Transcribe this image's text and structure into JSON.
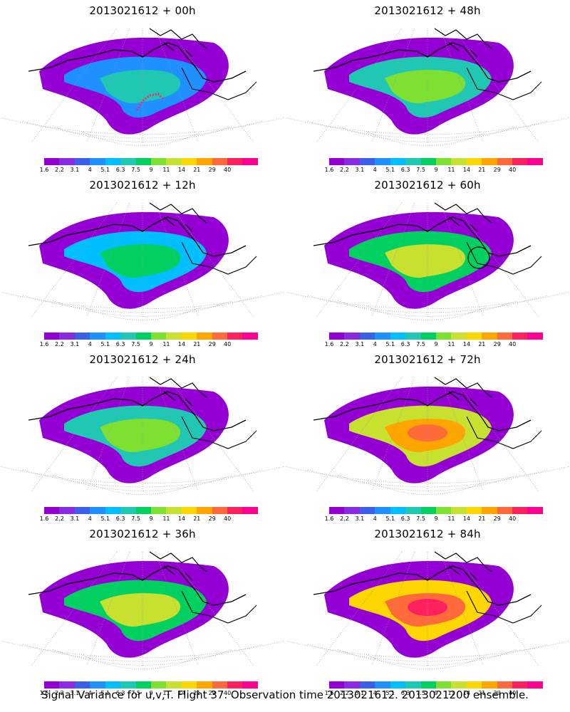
{
  "panels": [
    {
      "title": "2013021612 + 00h",
      "level": 2
    },
    {
      "title": "2013021612 + 48h",
      "level": 4
    },
    {
      "title": "2013021612 + 12h",
      "level": 3
    },
    {
      "title": "2013021612 + 60h",
      "level": 5
    },
    {
      "title": "2013021612 + 24h",
      "level": 4
    },
    {
      "title": "2013021612 + 72h",
      "level": 7
    },
    {
      "title": "2013021612 + 36h",
      "level": 5
    },
    {
      "title": "2013021612 + 84h",
      "level": 8
    }
  ],
  "colorbar": {
    "colors": [
      "#9400d3",
      "#8a2be2",
      "#3a5fe8",
      "#1e90ff",
      "#00bfff",
      "#20c8b4",
      "#00d060",
      "#7ee030",
      "#c8e030",
      "#ffd700",
      "#ffa500",
      "#ff6a3a",
      "#ff2060",
      "#ff0090"
    ],
    "labels": [
      "1.6",
      "2.2",
      "3.1",
      "4",
      "5.1",
      "6.3",
      "7.5",
      "9",
      "11",
      "14",
      "21",
      "29",
      "40"
    ]
  },
  "footer": "Signal Variance for u,v,T. Flight 37. Observation time 2013021612. 2013021200 ensemble."
}
